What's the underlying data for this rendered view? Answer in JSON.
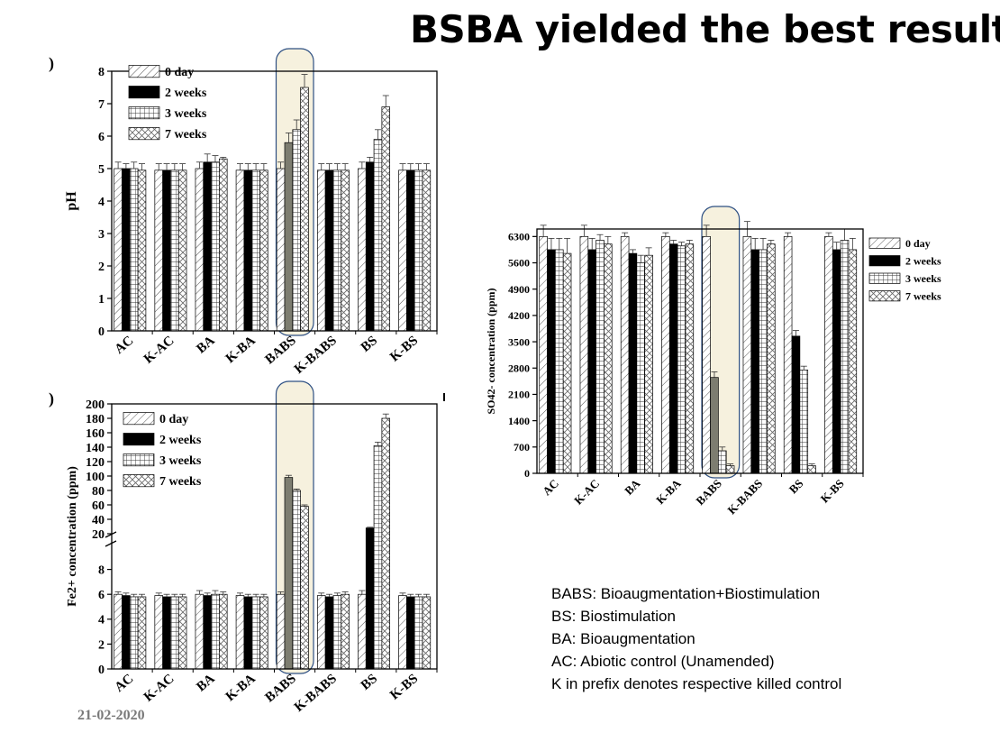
{
  "slide": {
    "title": "BSBA yielded the best result",
    "panel_mark_a": ")",
    "panel_mark_b": ")",
    "footer_date": "21-02-2020",
    "abbreviations": [
      "BABS: Bioaugmentation+Biostimulation",
      "BS: Biostimulation",
      "BA: Bioaugmentation",
      "AC: Abiotic control (Unamended)",
      "K in prefix denotes respective killed control"
    ],
    "highlight_category": "BABS",
    "colors": {
      "highlight_fill": "#f6f1de",
      "highlight_stroke": "#2d4f82",
      "bar_solid": "#000000",
      "bar_highlight_solid": "#7d7d70"
    }
  },
  "chart_data": [
    {
      "id": "ph",
      "type": "bar",
      "ylabel": "pH",
      "xlabel": "",
      "ylim": [
        0,
        8
      ],
      "yticks": [
        "0",
        "1",
        "2",
        "3",
        "4",
        "5",
        "6",
        "7",
        "8"
      ],
      "categories": [
        "AC",
        "K-AC",
        "BA",
        "K-BA",
        "BABS",
        "K-BABS",
        "BS",
        "K-BS"
      ],
      "legend": {
        "position": "top-left"
      },
      "series": [
        {
          "name": "0 day",
          "pattern": "diag",
          "values": [
            5.0,
            4.95,
            5.0,
            4.95,
            5.0,
            4.95,
            5.0,
            4.95
          ],
          "errors": [
            0.2,
            0.2,
            0.2,
            0.2,
            0.2,
            0.2,
            0.2,
            0.2
          ]
        },
        {
          "name": "2 weeks",
          "pattern": "solid",
          "values": [
            5.0,
            4.95,
            5.2,
            4.95,
            5.8,
            4.95,
            5.2,
            4.95
          ],
          "errors": [
            0.15,
            0.2,
            0.25,
            0.2,
            0.3,
            0.2,
            0.15,
            0.2
          ]
        },
        {
          "name": "3 weeks",
          "pattern": "grid",
          "values": [
            5.0,
            4.95,
            5.2,
            4.95,
            6.2,
            4.95,
            5.9,
            4.95
          ],
          "errors": [
            0.2,
            0.2,
            0.2,
            0.2,
            0.3,
            0.2,
            0.3,
            0.2
          ]
        },
        {
          "name": "7 weeks",
          "pattern": "cross",
          "values": [
            4.95,
            4.95,
            5.3,
            4.95,
            7.5,
            4.95,
            6.9,
            4.95
          ],
          "errors": [
            0.2,
            0.2,
            0.05,
            0.2,
            0.4,
            0.2,
            0.35,
            0.2
          ]
        }
      ]
    },
    {
      "id": "fe",
      "type": "bar",
      "ylabel": "Fe2+ concentration (ppm)",
      "xlabel": "",
      "broken_axis": {
        "lower": [
          0,
          10
        ],
        "upper": [
          20,
          200
        ]
      },
      "yticks_lower": [
        "0",
        "2",
        "4",
        "6",
        "8"
      ],
      "yticks_upper": [
        "20",
        "40",
        "60",
        "80",
        "100",
        "120",
        "140",
        "160",
        "180",
        "200"
      ],
      "categories": [
        "AC",
        "K-AC",
        "BA",
        "K-BA",
        "BABS",
        "K-BABS",
        "BS",
        "K-BS"
      ],
      "legend": {
        "position": "top-left"
      },
      "series": [
        {
          "name": "0 day",
          "pattern": "diag",
          "values": [
            6.0,
            5.9,
            6.0,
            5.9,
            6.0,
            5.9,
            6.0,
            5.9
          ],
          "errors": [
            0.2,
            0.2,
            0.3,
            0.2,
            0.2,
            0.2,
            0.3,
            0.2
          ]
        },
        {
          "name": "2 weeks",
          "pattern": "solid",
          "values": [
            5.9,
            5.8,
            5.9,
            5.8,
            98,
            5.8,
            28,
            5.8
          ],
          "errors": [
            0.2,
            0.2,
            0.2,
            0.2,
            3,
            0.2,
            1,
            0.2
          ]
        },
        {
          "name": "3 weeks",
          "pattern": "grid",
          "values": [
            5.8,
            5.8,
            6.0,
            5.8,
            80,
            5.9,
            142,
            5.8
          ],
          "errors": [
            0.2,
            0.2,
            0.3,
            0.2,
            2,
            0.2,
            5,
            0.2
          ]
        },
        {
          "name": "7 weeks",
          "pattern": "cross",
          "values": [
            5.8,
            5.8,
            6.0,
            5.8,
            58,
            6.0,
            180,
            5.8
          ],
          "errors": [
            0.2,
            0.2,
            0.2,
            0.2,
            2,
            0.2,
            6,
            0.2
          ]
        }
      ]
    },
    {
      "id": "so4",
      "type": "bar",
      "ylabel": "SO42- concentration (ppm)",
      "xlabel": "",
      "ylim": [
        0,
        6500
      ],
      "yticks": [
        "0",
        "700",
        "1400",
        "2100",
        "2800",
        "3500",
        "4200",
        "4900",
        "5600",
        "6300"
      ],
      "categories": [
        "AC",
        "K-AC",
        "BA",
        "K-BA",
        "BABS",
        "K-BABS",
        "BS",
        "K-BS"
      ],
      "legend": {
        "position": "top-right"
      },
      "series": [
        {
          "name": "0 day",
          "pattern": "diag",
          "values": [
            6300,
            6300,
            6300,
            6300,
            6300,
            6300,
            6300,
            6300
          ],
          "errors": [
            300,
            300,
            100,
            100,
            300,
            400,
            100,
            100
          ]
        },
        {
          "name": "2 weeks",
          "pattern": "solid",
          "values": [
            5950,
            5950,
            5850,
            6100,
            2550,
            5950,
            3650,
            5950
          ],
          "errors": [
            300,
            300,
            100,
            100,
            150,
            300,
            150,
            200
          ]
        },
        {
          "name": "3 weeks",
          "pattern": "grid",
          "values": [
            5950,
            6200,
            5600,
            6050,
            600,
            5950,
            2750,
            6200
          ],
          "errors": [
            300,
            150,
            200,
            100,
            100,
            300,
            100,
            300
          ]
        },
        {
          "name": "7 weeks",
          "pattern": "cross",
          "values": [
            5850,
            6100,
            5800,
            6100,
            200,
            6100,
            200,
            5950
          ],
          "errors": [
            400,
            200,
            200,
            100,
            50,
            100,
            50,
            300
          ]
        }
      ]
    }
  ]
}
